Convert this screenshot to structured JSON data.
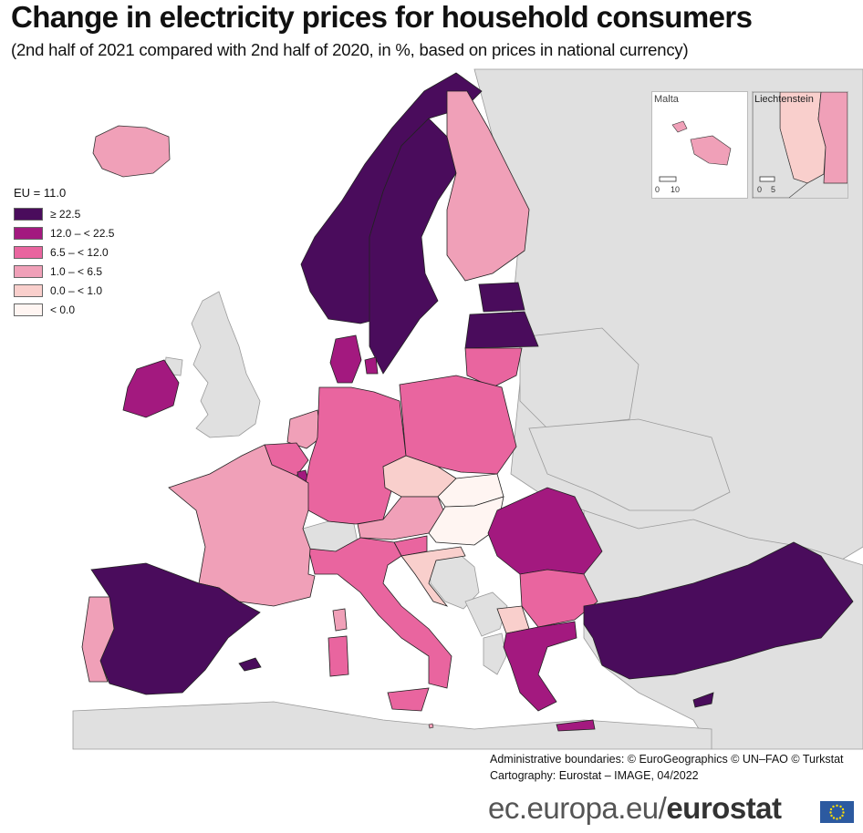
{
  "title": "Change in electricity prices for household consumers",
  "subtitle": "(2nd half of 2021 compared with 2nd half of 2020, in %, based on prices in national currency)",
  "legend": {
    "header": "EU = 11.0",
    "items": [
      {
        "label": "≥ 22.5",
        "color": "#4a0c5c"
      },
      {
        "label": "12.0 – < 22.5",
        "color": "#a3197f"
      },
      {
        "label": "6.5 – < 12.0",
        "color": "#e9659f"
      },
      {
        "label": "1.0 – < 6.5",
        "color": "#f0a0b8"
      },
      {
        "label": "0.0 – < 1.0",
        "color": "#f9cfcc"
      },
      {
        "label": "< 0.0",
        "color": "#fff5f2"
      }
    ]
  },
  "insets": {
    "malta": {
      "name": "Malta",
      "scale_min": "0",
      "scale_max": "10"
    },
    "liechtenstein": {
      "name": "Liechtenstein",
      "scale_min": "0",
      "scale_max": "5"
    }
  },
  "credits": {
    "line1": "Administrative boundaries: © EuroGeographics © UN–FAO © Turkstat",
    "line2": "Cartography: Eurostat – IMAGE, 04/2022"
  },
  "brand": {
    "prefix": "ec.europa.eu/",
    "name": "eurostat"
  },
  "colors": {
    "sea": "#ffffff",
    "non_eu": "#e0e0e0",
    "border": "#333333"
  }
}
